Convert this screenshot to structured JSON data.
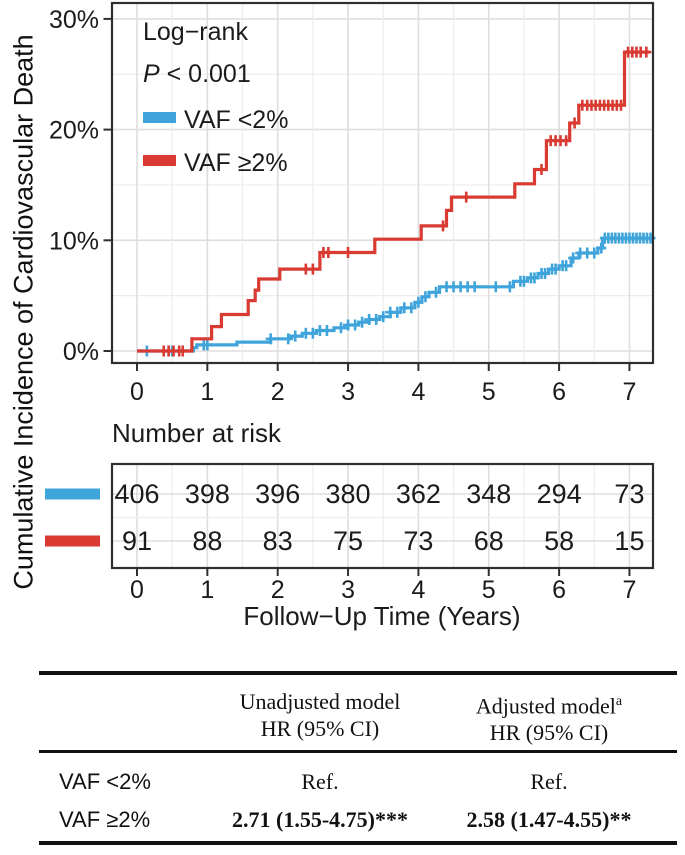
{
  "chart_data": {
    "type": "line",
    "subtype": "cumulative-incidence-step-curves",
    "y_axis_title": "Cumulative Incidence of Cardiovascular Death",
    "x_axis_title": "Follow−Up Time (Years)",
    "stat_test_label": "Log−rank",
    "p_label": "P",
    "p_value_text": " < 0.001",
    "legend_position": "inside-top-left",
    "grid": true,
    "x_ticks": [
      0,
      1,
      2,
      3,
      4,
      5,
      6,
      7
    ],
    "x_minor_ticks": [
      0.5,
      1.5,
      2.5,
      3.5,
      4.5,
      5.5,
      6.5
    ],
    "x_range": [
      -0.36,
      7.34
    ],
    "y_ticks": [
      0,
      10,
      20,
      30
    ],
    "y_tick_labels": [
      "0%",
      "10%",
      "20%",
      "30%"
    ],
    "y_minor_ticks": [
      5,
      15,
      25
    ],
    "y_range": [
      -1.1,
      31.5
    ],
    "series": [
      {
        "name": "VAF <2%",
        "color": "#3ea4db",
        "steps": [
          [
            0,
            0
          ],
          [
            0.8,
            0.3
          ],
          [
            0.85,
            0.55
          ],
          [
            1.42,
            0.8
          ],
          [
            1.9,
            1.1
          ],
          [
            2.18,
            1.35
          ],
          [
            2.35,
            1.6
          ],
          [
            2.55,
            1.85
          ],
          [
            2.8,
            2.1
          ],
          [
            3.0,
            2.35
          ],
          [
            3.15,
            2.6
          ],
          [
            3.3,
            2.85
          ],
          [
            3.45,
            3.1
          ],
          [
            3.6,
            3.5
          ],
          [
            3.75,
            3.9
          ],
          [
            3.95,
            4.4
          ],
          [
            4.05,
            4.9
          ],
          [
            4.15,
            5.3
          ],
          [
            4.3,
            5.8
          ],
          [
            5.35,
            6.3
          ],
          [
            5.55,
            6.6
          ],
          [
            5.7,
            7.0
          ],
          [
            5.85,
            7.4
          ],
          [
            6.0,
            7.7
          ],
          [
            6.17,
            8.4
          ],
          [
            6.28,
            8.85
          ],
          [
            6.55,
            9.3
          ],
          [
            6.62,
            10.2
          ]
        ],
        "end_time": 7.32,
        "censor_times": [
          0.14,
          0.45,
          0.5,
          0.95,
          1.0,
          1.9,
          2.15,
          2.25,
          2.4,
          2.5,
          2.6,
          2.7,
          2.9,
          3.0,
          3.1,
          3.2,
          3.3,
          3.4,
          3.5,
          3.6,
          3.7,
          3.8,
          3.9,
          4.0,
          4.1,
          4.25,
          4.4,
          4.5,
          4.6,
          4.7,
          4.8,
          5.1,
          5.3,
          5.45,
          5.5,
          5.6,
          5.65,
          5.75,
          5.8,
          5.9,
          5.95,
          6.05,
          6.1,
          6.2,
          6.3,
          6.4,
          6.5,
          6.6,
          6.65,
          6.7,
          6.75,
          6.8,
          6.85,
          6.9,
          6.95,
          7.0,
          7.05,
          7.1,
          7.15,
          7.2,
          7.25,
          7.3
        ]
      },
      {
        "name": "VAF ≥2%",
        "color": "#d93a32",
        "steps": [
          [
            0,
            0
          ],
          [
            0.78,
            1.1
          ],
          [
            1.06,
            2.2
          ],
          [
            1.2,
            3.3
          ],
          [
            1.58,
            4.55
          ],
          [
            1.68,
            5.5
          ],
          [
            1.73,
            6.5
          ],
          [
            2.03,
            7.4
          ],
          [
            2.6,
            8.9
          ],
          [
            3.38,
            10.1
          ],
          [
            4.04,
            11.3
          ],
          [
            4.4,
            12.7
          ],
          [
            4.47,
            13.9
          ],
          [
            5.37,
            15.1
          ],
          [
            5.65,
            16.4
          ],
          [
            5.82,
            19.0
          ],
          [
            6.15,
            20.6
          ],
          [
            6.28,
            22.2
          ],
          [
            6.93,
            27.0
          ]
        ],
        "end_time": 7.28,
        "censor_times": [
          0.38,
          0.45,
          0.52,
          0.6,
          0.65,
          2.4,
          2.5,
          2.65,
          2.72,
          3.0,
          4.35,
          4.68,
          5.75,
          5.88,
          5.95,
          6.02,
          6.1,
          6.22,
          6.33,
          6.4,
          6.46,
          6.52,
          6.58,
          6.64,
          6.7,
          6.76,
          6.82,
          6.88,
          6.98,
          7.04,
          7.1,
          7.16,
          7.24
        ]
      }
    ],
    "number_at_risk": {
      "label": "Number at risk",
      "times": [
        0,
        1,
        2,
        3,
        4,
        5,
        6,
        7
      ],
      "rows": [
        {
          "name": "VAF <2%",
          "color": "#3ea4db",
          "counts": [
            406,
            398,
            396,
            380,
            362,
            348,
            294,
            73
          ]
        },
        {
          "name": "VAF ≥2%",
          "color": "#d93a32",
          "counts": [
            91,
            88,
            83,
            75,
            73,
            68,
            58,
            15
          ]
        }
      ]
    }
  },
  "stats_table": {
    "header": {
      "unadjusted_line1": "Unadjusted model",
      "unadjusted_line2": "HR (95% CI)",
      "adjusted_line1": "Adjusted model",
      "adjusted_superscript": "a",
      "adjusted_line2": "HR (95% CI)"
    },
    "rows": [
      {
        "label": "VAF <2%",
        "unadjusted": "Ref.",
        "adjusted": "Ref."
      },
      {
        "label": "VAF ≥2%",
        "unadjusted": "2.71 (1.55-4.75)***",
        "adjusted": "2.58 (1.47-4.55)**"
      }
    ]
  }
}
